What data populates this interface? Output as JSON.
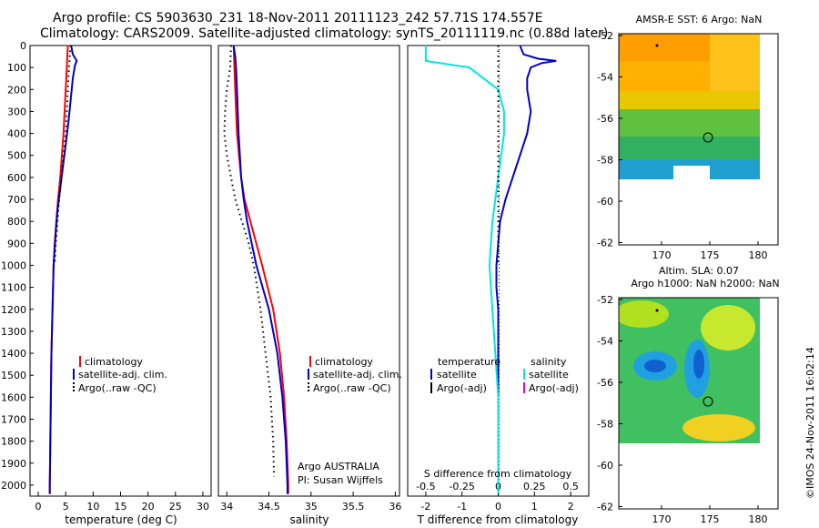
{
  "title_line1": "Argo profile: CS 5903630_231 18-Nov-2011 20111123_242 57.71S 174.557E",
  "title_line2": "Climatology: CARS2009. Satellite-adjusted climatology: synTS_20111119.nc (0.88d later)",
  "stamp": "©IMOS 24-Nov-2011 16:02:14",
  "colors": {
    "climatology": "#ff0000",
    "satellite": "#0000cc",
    "argo": "#000000",
    "sal_satellite": "#00e5e5",
    "sal_argo": "#dd00dd"
  },
  "chart_data": [
    {
      "type": "line",
      "xlabel": "temperature (deg C)",
      "ylabel": "",
      "xlim": [
        -1.5,
        31.5
      ],
      "ylim": [
        2050,
        0
      ],
      "x_ticks": [
        "0",
        "5",
        "10",
        "15",
        "20",
        "25",
        "30"
      ],
      "y_ticks": [
        "0",
        "100",
        "200",
        "300",
        "400",
        "500",
        "600",
        "700",
        "800",
        "900",
        "1000",
        "1100",
        "1200",
        "1300",
        "1400",
        "1500",
        "1600",
        "1700",
        "1800",
        "1900",
        "2000"
      ],
      "legend": [
        "climatology",
        "satellite-adj. clim.",
        "Argo(..raw -QC)"
      ],
      "series": [
        {
          "name": "climatology",
          "y": [
            0,
            50,
            100,
            200,
            300,
            400,
            500,
            600,
            700,
            800,
            900,
            1000,
            1200,
            1400,
            1600,
            1800,
            2000,
            2040
          ],
          "values": [
            5.4,
            5.3,
            5.2,
            5.0,
            4.8,
            4.6,
            4.3,
            4.0,
            3.6,
            3.3,
            3.0,
            2.8,
            2.6,
            2.4,
            2.3,
            2.2,
            2.1,
            2.1
          ]
        },
        {
          "name": "satellite-adj. clim.",
          "y": [
            0,
            40,
            70,
            90,
            150,
            250,
            350,
            450,
            550,
            650,
            750,
            850,
            1000,
            1200,
            1400,
            1600,
            1800,
            2000,
            2040
          ],
          "values": [
            6.0,
            6.3,
            7.0,
            6.7,
            6.3,
            5.9,
            5.5,
            5.0,
            4.5,
            4.0,
            3.5,
            3.2,
            2.8,
            2.6,
            2.4,
            2.3,
            2.2,
            2.1,
            2.1
          ]
        },
        {
          "name": "Argo(..raw -QC)",
          "y": [
            0,
            100,
            200,
            300,
            400,
            500,
            600,
            700,
            800,
            900,
            1000
          ],
          "values": [
            5.9,
            5.6,
            5.4,
            5.2,
            5.0,
            4.6,
            4.2,
            3.8,
            3.5,
            3.2,
            3.0
          ]
        }
      ]
    },
    {
      "type": "line",
      "xlabel": "salinity",
      "xlim": [
        33.9,
        36.05
      ],
      "ylim": [
        2050,
        0
      ],
      "x_ticks": [
        "34",
        "34.5",
        "35",
        "35.5",
        "36"
      ],
      "legend": [
        "climatology",
        "satellite-adj. clim.",
        "Argo(..raw -QC)"
      ],
      "annotation": [
        "Argo AUSTRALIA",
        "PI: Susan Wijffels"
      ],
      "series": [
        {
          "name": "climatology",
          "y": [
            0,
            100,
            200,
            400,
            600,
            700,
            800,
            1000,
            1200,
            1400,
            1600,
            1800,
            2000,
            2040
          ],
          "values": [
            34.08,
            34.09,
            34.1,
            34.12,
            34.17,
            34.21,
            34.28,
            34.42,
            34.55,
            34.63,
            34.68,
            34.71,
            34.73,
            34.73
          ]
        },
        {
          "name": "satellite-adj. clim.",
          "y": [
            0,
            50,
            100,
            200,
            400,
            600,
            700,
            800,
            1000,
            1200,
            1400,
            1600,
            1800,
            2000,
            2040
          ],
          "values": [
            34.08,
            34.1,
            34.11,
            34.12,
            34.14,
            34.17,
            34.2,
            34.24,
            34.35,
            34.5,
            34.6,
            34.66,
            34.7,
            34.72,
            34.72
          ]
        },
        {
          "name": "Argo(..raw -QC)",
          "y": [
            0,
            100,
            200,
            300,
            400,
            500,
            600,
            700,
            800,
            900,
            1000,
            1200,
            1400,
            1600,
            1800,
            1960
          ],
          "values": [
            34.05,
            34.04,
            34.0,
            33.98,
            33.97,
            34.0,
            34.05,
            34.1,
            34.18,
            34.26,
            34.32,
            34.4,
            34.46,
            34.52,
            34.55,
            34.56
          ]
        }
      ]
    },
    {
      "type": "line",
      "xlabel": "T difference from climatology",
      "xlim": [
        -2.5,
        2.5
      ],
      "ylim": [
        2050,
        0
      ],
      "x_ticks": [
        "-2",
        "-1",
        "0",
        "1",
        "2"
      ],
      "x_ticks_top": [
        "-0.5",
        "-0.25",
        "0",
        "0.25",
        "0.5"
      ],
      "x_label_top": "S difference from climatology",
      "legend_header": [
        "temperature",
        "salinity"
      ],
      "legend": [
        "satellite",
        "Argo(-adj)",
        "satellite",
        "Argo(-adj)"
      ],
      "series": [
        {
          "name": "satellite",
          "quantity": "temperature",
          "y": [
            0,
            40,
            60,
            70,
            80,
            100,
            150,
            200,
            300,
            400,
            500,
            600,
            700,
            800,
            900,
            1000,
            1100,
            1200,
            1400,
            1600,
            1800,
            2000,
            2040
          ],
          "values": [
            0.6,
            0.7,
            1.1,
            1.6,
            1.2,
            0.9,
            0.8,
            0.8,
            0.9,
            0.8,
            0.6,
            0.4,
            0.2,
            0.05,
            0.0,
            -0.05,
            -0.05,
            0.0,
            0.0,
            0.0,
            0.0,
            0.0,
            0.0
          ]
        },
        {
          "name": "satellite",
          "quantity": "salinity",
          "y": [
            0,
            70,
            100,
            200,
            300,
            400,
            500,
            600,
            700,
            800,
            1000,
            1200,
            1400,
            1600,
            1800,
            2000,
            2040
          ],
          "values": [
            -0.5,
            -0.5,
            -0.2,
            0.0,
            0.04,
            0.04,
            0.02,
            0.0,
            -0.02,
            -0.04,
            -0.06,
            -0.04,
            -0.02,
            0.0,
            0.0,
            0.0,
            0.0
          ]
        },
        {
          "name": "Argo(-adj)",
          "quantity": "temperature",
          "y": [
            0,
            200,
            400,
            600,
            800,
            1000
          ],
          "values": [
            0.0,
            0.0,
            0.0,
            0.0,
            0.0,
            0.0
          ]
        }
      ]
    }
  ],
  "maps": [
    {
      "title": "AMSR-E SST: 6 Argo: NaN",
      "y_ticks": [
        "-52",
        "-54",
        "-56",
        "-58",
        "-60",
        "-62"
      ],
      "x_ticks": [
        "170",
        "175",
        "180"
      ]
    },
    {
      "title_line1": "Altim. SLA: 0.07",
      "title_line2": "Argo h1000: NaN h2000: NaN",
      "y_ticks": [
        "-52",
        "-54",
        "-56",
        "-58",
        "-60",
        "-62"
      ],
      "x_ticks": [
        "170",
        "175",
        "180"
      ]
    }
  ]
}
